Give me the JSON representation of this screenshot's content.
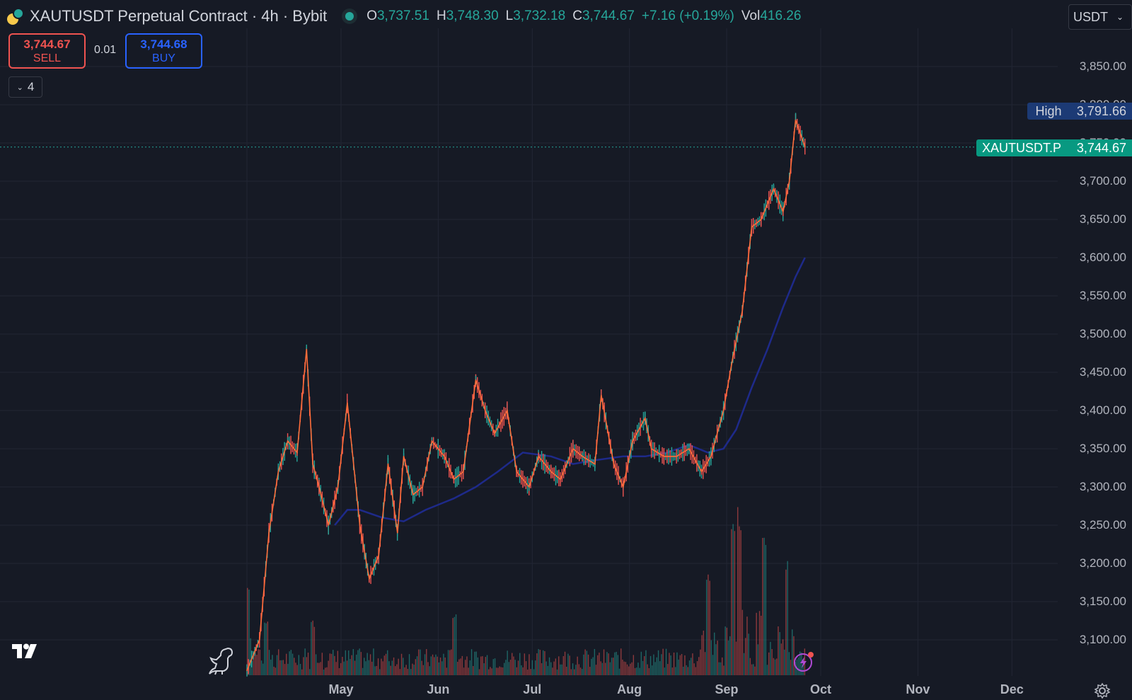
{
  "header": {
    "title": "XAUTUSDT Perpetual Contract · 4h · Bybit",
    "ohlc": [
      {
        "key": "O",
        "value": "3,737.51"
      },
      {
        "key": "H",
        "value": "3,748.30"
      },
      {
        "key": "L",
        "value": "3,732.18"
      },
      {
        "key": "C",
        "value": "3,744.67"
      }
    ],
    "change": "+7.16 (+0.19%)",
    "vol_label": "Vol",
    "vol_value": "416.26",
    "currency": "USDT"
  },
  "trade": {
    "sell_price": "3,744.67",
    "sell_label": "SELL",
    "quantity": "0.01",
    "buy_price": "3,744.68",
    "buy_label": "BUY"
  },
  "indicators_count": "4",
  "price_tags": {
    "high_label": "High",
    "high_value": "3,791.66",
    "last_label": "XAUTUSDT.P",
    "last_value": "3,744.67"
  },
  "colors": {
    "background": "#161a25",
    "up": "#26a69a",
    "down": "#ef5350",
    "ma_fast": "#ff6d3a",
    "ma_slow": "#1e2a8a",
    "high_tag": "#1c3a75",
    "last_tag": "#089981"
  },
  "chart_data": {
    "type": "line",
    "title": "XAUTUSDT Perpetual Contract · 4h · Bybit",
    "ylim": [
      3050,
      3900
    ],
    "y_ticks": [
      "3,100.00",
      "3,150.00",
      "3,200.00",
      "3,250.00",
      "3,300.00",
      "3,350.00",
      "3,400.00",
      "3,450.00",
      "3,500.00",
      "3,550.00",
      "3,600.00",
      "3,650.00",
      "3,700.00",
      "3,750.00",
      "3,800.00",
      "3,850.00"
    ],
    "x_ticks": [
      "May",
      "Jun",
      "Jul",
      "Aug",
      "Sep",
      "Oct",
      "Nov",
      "Dec"
    ],
    "grid": true,
    "series": [
      {
        "name": "price",
        "x": [
          "2025-04-01",
          "2025-04-05",
          "2025-04-08",
          "2025-04-11",
          "2025-04-14",
          "2025-04-17",
          "2025-04-20",
          "2025-04-22",
          "2025-04-24",
          "2025-04-27",
          "2025-04-30",
          "2025-05-03",
          "2025-05-07",
          "2025-05-10",
          "2025-05-13",
          "2025-05-16",
          "2025-05-19",
          "2025-05-21",
          "2025-05-24",
          "2025-05-27",
          "2025-05-30",
          "2025-06-03",
          "2025-06-06",
          "2025-06-09",
          "2025-06-13",
          "2025-06-16",
          "2025-06-19",
          "2025-06-23",
          "2025-06-26",
          "2025-06-30",
          "2025-07-03",
          "2025-07-07",
          "2025-07-10",
          "2025-07-14",
          "2025-07-17",
          "2025-07-21",
          "2025-07-23",
          "2025-07-27",
          "2025-07-30",
          "2025-08-02",
          "2025-08-06",
          "2025-08-08",
          "2025-08-12",
          "2025-08-16",
          "2025-08-20",
          "2025-08-24",
          "2025-08-27",
          "2025-08-31",
          "2025-09-03",
          "2025-09-06",
          "2025-09-09",
          "2025-09-12",
          "2025-09-16",
          "2025-09-19",
          "2025-09-21",
          "2025-09-23",
          "2025-09-26"
        ],
        "values": [
          3060,
          3100,
          3240,
          3320,
          3360,
          3345,
          3480,
          3330,
          3300,
          3250,
          3300,
          3410,
          3250,
          3180,
          3210,
          3330,
          3240,
          3340,
          3290,
          3300,
          3360,
          3340,
          3310,
          3320,
          3440,
          3400,
          3370,
          3400,
          3320,
          3300,
          3340,
          3320,
          3310,
          3350,
          3340,
          3330,
          3420,
          3330,
          3300,
          3360,
          3390,
          3350,
          3340,
          3340,
          3350,
          3320,
          3340,
          3400,
          3470,
          3530,
          3640,
          3650,
          3690,
          3660,
          3700,
          3780,
          3745
        ]
      },
      {
        "name": "slow ma",
        "x": [
          "2025-04-29",
          "2025-05-03",
          "2025-05-07",
          "2025-05-14",
          "2025-05-21",
          "2025-05-28",
          "2025-06-06",
          "2025-06-13",
          "2025-06-20",
          "2025-06-28",
          "2025-07-07",
          "2025-07-14",
          "2025-07-21",
          "2025-07-30",
          "2025-08-06",
          "2025-08-13",
          "2025-08-20",
          "2025-08-26",
          "2025-08-31",
          "2025-09-04",
          "2025-09-09",
          "2025-09-14",
          "2025-09-19",
          "2025-09-23",
          "2025-09-26"
        ],
        "values": [
          3250,
          3270,
          3270,
          3260,
          3255,
          3270,
          3285,
          3300,
          3320,
          3345,
          3340,
          3330,
          3335,
          3340,
          3340,
          3345,
          3355,
          3345,
          3350,
          3375,
          3430,
          3480,
          3535,
          3575,
          3600
        ]
      }
    ],
    "volume": {
      "note_scale": "relative",
      "peaks": [
        {
          "x": "2025-04-01",
          "value": 0.55
        },
        {
          "x": "2025-04-07",
          "value": 0.35
        },
        {
          "x": "2025-04-22",
          "value": 0.33
        },
        {
          "x": "2025-06-06",
          "value": 0.38
        },
        {
          "x": "2025-08-26",
          "value": 0.6
        },
        {
          "x": "2025-09-03",
          "value": 0.9
        },
        {
          "x": "2025-09-05",
          "value": 1.0
        },
        {
          "x": "2025-09-13",
          "value": 0.85
        },
        {
          "x": "2025-09-20",
          "value": 0.68
        }
      ]
    },
    "high": 3791.66,
    "last": 3744.67
  }
}
